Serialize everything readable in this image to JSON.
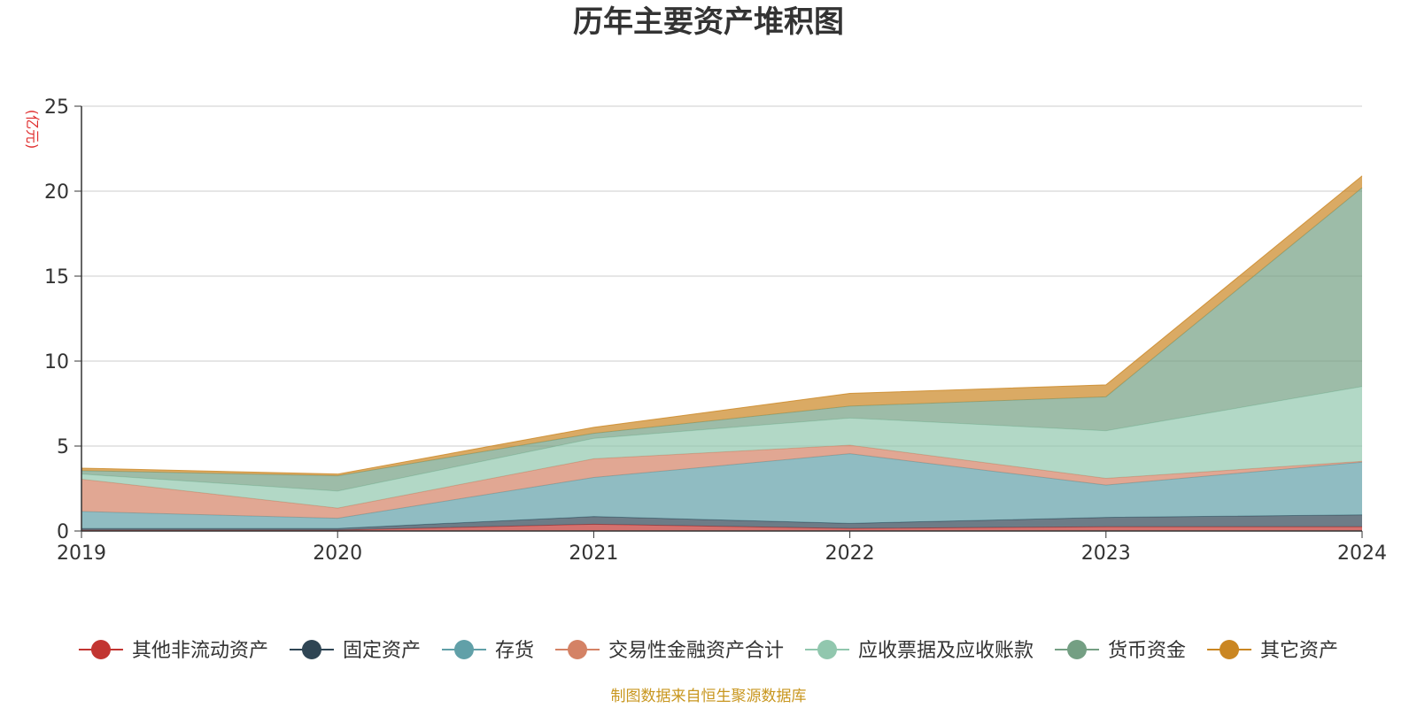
{
  "chart_data": {
    "type": "area",
    "stacked": true,
    "title": "历年主要资产堆积图",
    "ylabel": "(亿元)",
    "xlabel": "",
    "x": [
      "2019",
      "2020",
      "2021",
      "2022",
      "2023",
      "2024"
    ],
    "ylim": [
      0,
      25
    ],
    "yticks": [
      0,
      5,
      10,
      15,
      20,
      25
    ],
    "grid": true,
    "legend_position": "bottom",
    "series": [
      {
        "name": "其他非流动资产",
        "color": "#c23531",
        "values": [
          0.05,
          0.05,
          0.4,
          0.15,
          0.25,
          0.25
        ]
      },
      {
        "name": "固定资产",
        "color": "#2f4554",
        "values": [
          0.1,
          0.1,
          0.45,
          0.3,
          0.55,
          0.7
        ]
      },
      {
        "name": "存货",
        "color": "#61a0a8",
        "values": [
          1.0,
          0.6,
          2.3,
          4.1,
          1.9,
          3.1
        ]
      },
      {
        "name": "交易性金融资产合计",
        "color": "#d48265",
        "values": [
          1.9,
          0.6,
          1.1,
          0.5,
          0.4,
          0.05
        ]
      },
      {
        "name": "应收票据及应收账款",
        "color": "#91c7ae",
        "values": [
          0.3,
          1.0,
          1.2,
          1.6,
          2.8,
          4.4
        ]
      },
      {
        "name": "货币资金",
        "color": "#749f83",
        "values": [
          0.2,
          0.9,
          0.3,
          0.7,
          2.0,
          11.7
        ]
      },
      {
        "name": "其它资产",
        "color": "#ca8622",
        "values": [
          0.15,
          0.1,
          0.35,
          0.75,
          0.7,
          0.7
        ]
      }
    ]
  },
  "source_note": "制图数据来自恒生聚源数据库",
  "colors": {
    "axis": "#333333",
    "grid": "#cccccc",
    "unit": "#e03030",
    "source": "#c8961e"
  }
}
